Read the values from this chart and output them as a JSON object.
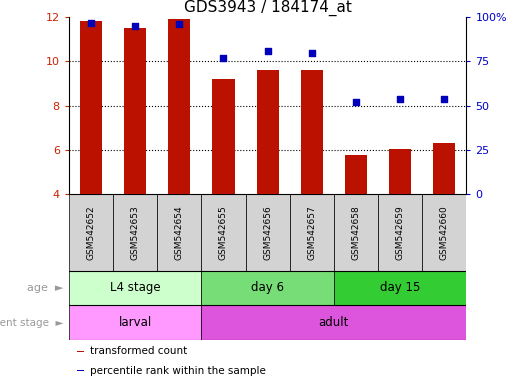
{
  "title": "GDS3943 / 184174_at",
  "samples": [
    "GSM542652",
    "GSM542653",
    "GSM542654",
    "GSM542655",
    "GSM542656",
    "GSM542657",
    "GSM542658",
    "GSM542659",
    "GSM542660"
  ],
  "bar_values": [
    11.85,
    11.5,
    11.9,
    9.2,
    9.6,
    9.6,
    5.75,
    6.05,
    6.3
  ],
  "percentile_values": [
    97,
    95,
    96,
    77,
    81,
    80,
    52,
    54,
    54
  ],
  "ylim_left": [
    4,
    12
  ],
  "ylim_right": [
    0,
    100
  ],
  "yticks_left": [
    4,
    6,
    8,
    10,
    12
  ],
  "yticks_right": [
    0,
    25,
    50,
    75,
    100
  ],
  "bar_color": "#bb1100",
  "dot_color": "#0000bb",
  "bar_width": 0.5,
  "age_groups": [
    {
      "label": "L4 stage",
      "start": 0,
      "end": 3,
      "color": "#ccffcc"
    },
    {
      "label": "day 6",
      "start": 3,
      "end": 6,
      "color": "#77dd77"
    },
    {
      "label": "day 15",
      "start": 6,
      "end": 9,
      "color": "#33cc33"
    }
  ],
  "dev_groups": [
    {
      "label": "larval",
      "start": 0,
      "end": 3,
      "color": "#ff99ff"
    },
    {
      "label": "adult",
      "start": 3,
      "end": 9,
      "color": "#dd55dd"
    }
  ],
  "sample_box_color": "#d3d3d3",
  "background_color": "#ffffff",
  "left_tick_color": "#cc2200",
  "right_tick_color": "#0000cc",
  "title_fontsize": 11,
  "gridline_values": [
    6,
    8,
    10
  ],
  "legend_items": [
    {
      "color": "#bb1100",
      "label": "transformed count"
    },
    {
      "color": "#0000bb",
      "label": "percentile rank within the sample"
    }
  ]
}
